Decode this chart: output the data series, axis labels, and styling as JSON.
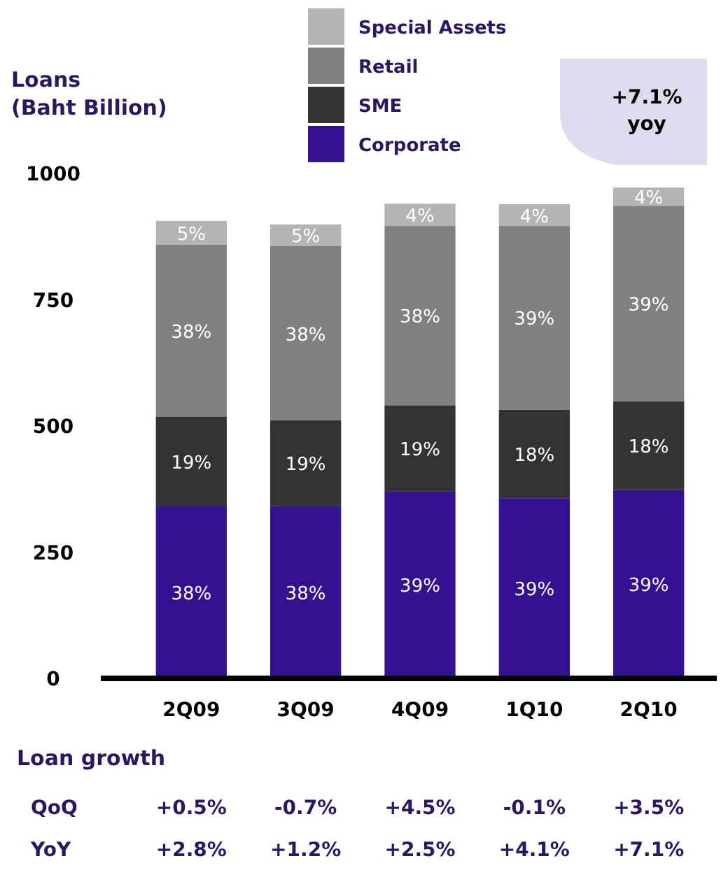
{
  "chart_data": {
    "type": "bar",
    "stacked": true,
    "ylabel": "Loans\n(Baht Billion)",
    "categories": [
      "2Q09",
      "3Q09",
      "4Q09",
      "1Q10",
      "2Q10"
    ],
    "series": [
      {
        "name": "Corporate",
        "color": "#33118f",
        "values": [
          342,
          341,
          370,
          357,
          373
        ]
      },
      {
        "name": "SME",
        "color": "#333333",
        "values": [
          176,
          170,
          171,
          175,
          176
        ]
      },
      {
        "name": "Retail",
        "color": "#808080",
        "values": [
          341,
          345,
          355,
          364,
          387
        ]
      },
      {
        "name": "Special Assets",
        "color": "#b4b4b4",
        "values": [
          47,
          43,
          44,
          43,
          36
        ]
      }
    ],
    "ylim": [
      0,
      1000
    ],
    "yticks": [
      0,
      250,
      500,
      750,
      1000
    ],
    "grid": false,
    "legend": "top",
    "annotations": [
      "38%",
      "19%",
      "38%",
      "5%",
      "38%",
      "19%",
      "38%",
      "5%",
      "39%",
      "19%",
      "38%",
      "4%",
      "39%",
      "18%",
      "39%",
      "4%",
      "39%",
      "18%",
      "39%",
      "4%",
      "+7.1%\nyoy",
      "Loan growth",
      "QoQ",
      "+0.5%",
      "-0.7%",
      "+4.5%",
      "-0.1%",
      "+3.5%",
      "YoY",
      "+2.8%",
      "+1.2%",
      "+2.5%",
      "+4.1%",
      "+7.1%"
    ]
  }
}
